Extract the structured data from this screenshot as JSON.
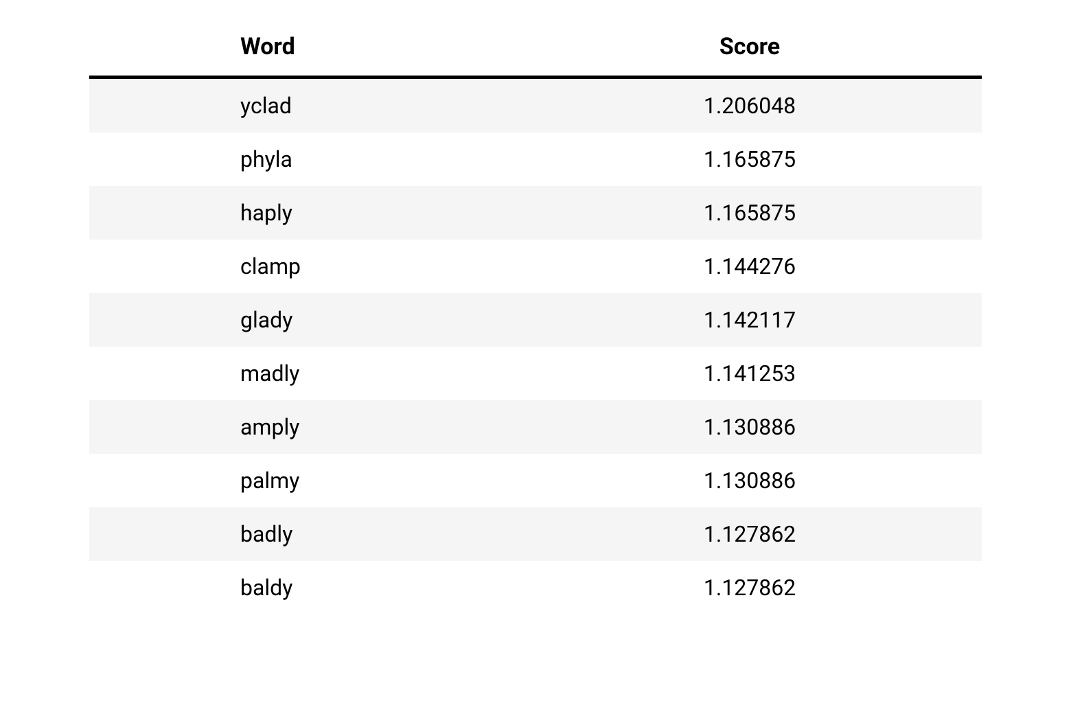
{
  "table": {
    "type": "table",
    "columns": [
      "Word",
      "Score"
    ],
    "rows": [
      [
        "yclad",
        "1.206048"
      ],
      [
        "phyla",
        "1.165875"
      ],
      [
        "haply",
        "1.165875"
      ],
      [
        "clamp",
        "1.144276"
      ],
      [
        "glady",
        "1.142117"
      ],
      [
        "madly",
        "1.141253"
      ],
      [
        "amply",
        "1.130886"
      ],
      [
        "palmy",
        "1.130886"
      ],
      [
        "badly",
        "1.127862"
      ],
      [
        "baldy",
        "1.127862"
      ]
    ],
    "header_fontsize": 34,
    "header_fontweight": 700,
    "cell_fontsize": 32,
    "cell_fontweight": 400,
    "header_border_color": "#000000",
    "header_border_width": 5,
    "row_stripe_color": "#f5f5f5",
    "row_base_color": "#ffffff",
    "text_color": "#000000",
    "background_color": "#ffffff",
    "column_alignment": [
      "left",
      "center"
    ],
    "word_column_left_pad": 220
  }
}
